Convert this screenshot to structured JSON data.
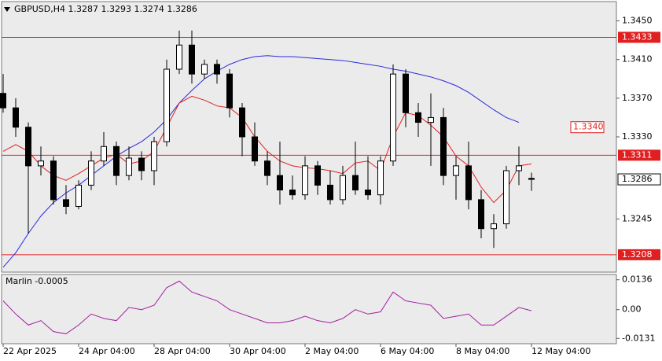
{
  "chart_data": [
    {
      "type": "candlestick",
      "title": "GBPUSD,H4  1.3287 1.3293 1.3274 1.3286",
      "categories": [
        "22 Apr 2025",
        null,
        null,
        null,
        null,
        null,
        "24 Apr 04:00",
        null,
        null,
        null,
        null,
        null,
        "28 Apr 04:00",
        null,
        null,
        null,
        null,
        null,
        "30 Apr 04:00",
        null,
        null,
        null,
        null,
        null,
        "2 May 04:00",
        null,
        null,
        null,
        null,
        null,
        "6 May 04:00",
        null,
        null,
        null,
        null,
        null,
        "8 May 04:00",
        null,
        null,
        null,
        null,
        null,
        "12 May 04:00"
      ],
      "open": [
        1.3375,
        1.336,
        1.334,
        1.33,
        1.3305,
        1.3265,
        1.3258,
        1.328,
        1.3305,
        1.332,
        1.329,
        1.3308,
        1.3295,
        1.3325,
        1.34,
        1.3425,
        1.3395,
        1.3405,
        1.3395,
        1.336,
        1.333,
        1.3305,
        1.329,
        1.3275,
        1.327,
        1.33,
        1.328,
        1.3265,
        1.329,
        1.3275,
        1.327,
        1.3305,
        1.3395,
        1.3355,
        1.3345,
        1.335,
        1.329,
        1.33,
        1.3265,
        1.3235,
        1.324,
        1.3295,
        1.3287
      ],
      "high": [
        1.3395,
        1.337,
        1.3345,
        1.332,
        1.331,
        1.328,
        1.3285,
        1.3315,
        1.3335,
        1.3325,
        1.332,
        1.3315,
        1.333,
        1.341,
        1.344,
        1.344,
        1.341,
        1.341,
        1.34,
        1.3365,
        1.3345,
        1.3315,
        1.3325,
        1.329,
        1.331,
        1.3305,
        1.3295,
        1.33,
        1.3325,
        1.331,
        1.331,
        1.3405,
        1.34,
        1.3365,
        1.3375,
        1.336,
        1.331,
        1.3325,
        1.3275,
        1.325,
        1.33,
        1.332,
        1.3293
      ],
      "low": [
        1.3355,
        1.333,
        1.323,
        1.329,
        1.326,
        1.325,
        1.3255,
        1.3275,
        1.33,
        1.328,
        1.3285,
        1.3285,
        1.328,
        1.332,
        1.3395,
        1.3385,
        1.339,
        1.3385,
        1.335,
        1.331,
        1.33,
        1.328,
        1.326,
        1.3265,
        1.3265,
        1.327,
        1.326,
        1.326,
        1.327,
        1.3265,
        1.326,
        1.33,
        1.334,
        1.333,
        1.33,
        1.328,
        1.3265,
        1.3255,
        1.3225,
        1.3215,
        1.3235,
        1.328,
        1.3274
      ],
      "close": [
        1.336,
        1.334,
        1.33,
        1.3305,
        1.3265,
        1.3258,
        1.328,
        1.3305,
        1.332,
        1.329,
        1.3308,
        1.3295,
        1.3325,
        1.34,
        1.3425,
        1.3395,
        1.3405,
        1.3395,
        1.336,
        1.333,
        1.3305,
        1.329,
        1.3275,
        1.327,
        1.33,
        1.328,
        1.3265,
        1.329,
        1.3275,
        1.327,
        1.3305,
        1.3395,
        1.3355,
        1.3345,
        1.335,
        1.329,
        1.33,
        1.3265,
        1.3235,
        1.324,
        1.3295,
        1.33,
        1.3286
      ],
      "up_color": "#ffffff",
      "down_color": "#000000",
      "lines": [
        {
          "color": "#2a2ae0",
          "values": [
            1.3195,
            1.321,
            1.323,
            1.3248,
            1.3262,
            1.3272,
            1.328,
            1.329,
            1.33,
            1.331,
            1.3318,
            1.3325,
            1.3335,
            1.3348,
            1.3365,
            1.3378,
            1.339,
            1.3398,
            1.3405,
            1.341,
            1.3413,
            1.3414,
            1.3413,
            1.3413,
            1.3412,
            1.3411,
            1.341,
            1.3409,
            1.3407,
            1.3405,
            1.3403,
            1.34,
            1.3398,
            1.3395,
            1.3392,
            1.3388,
            1.3383,
            1.3376,
            1.3367,
            1.3358,
            1.335,
            1.3345,
            null
          ]
        },
        {
          "color": "#e02020",
          "values": [
            1.3315,
            1.3322,
            1.3315,
            1.33,
            1.329,
            1.3285,
            1.3292,
            1.33,
            1.3308,
            1.3312,
            1.3302,
            1.3305,
            1.3315,
            1.334,
            1.3365,
            1.3372,
            1.3368,
            1.3362,
            1.336,
            1.335,
            1.333,
            1.3315,
            1.3305,
            1.33,
            1.3298,
            1.3297,
            1.3295,
            1.3292,
            1.3303,
            1.3305,
            1.3295,
            1.333,
            1.3355,
            1.3352,
            1.3342,
            1.333,
            1.331,
            1.33,
            1.3278,
            1.3262,
            1.3275,
            1.33,
            1.3302
          ]
        }
      ],
      "hlines": [
        1.3433,
        1.3311,
        1.3208
      ],
      "hline_color": "#e02020",
      "current_price": 1.3286,
      "ma_label": {
        "value": 1.334,
        "label": "1.3340"
      },
      "ylim": [
        1.319,
        1.347
      ],
      "yticks": [
        {
          "value": 1.345,
          "label": "1.3450"
        },
        {
          "value": 1.341,
          "label": "1.3410"
        },
        {
          "value": 1.337,
          "label": "1.3370"
        },
        {
          "value": 1.333,
          "label": "1.3330"
        },
        {
          "value": 1.3245,
          "label": "1.3245"
        }
      ]
    },
    {
      "type": "line",
      "title": "Marlin -0.0005",
      "color": "#a020a0",
      "values": [
        0.004,
        -0.002,
        -0.007,
        -0.005,
        -0.01,
        -0.011,
        -0.007,
        -0.002,
        -0.004,
        -0.005,
        0.001,
        0.0,
        0.002,
        0.01,
        0.013,
        0.008,
        0.006,
        0.004,
        0.0,
        -0.002,
        -0.004,
        -0.006,
        -0.006,
        -0.005,
        -0.003,
        -0.005,
        -0.006,
        -0.004,
        0.0,
        -0.002,
        -0.001,
        0.008,
        0.004,
        0.003,
        0.002,
        -0.004,
        -0.003,
        -0.002,
        -0.007,
        -0.007,
        -0.003,
        0.001,
        -0.0005
      ],
      "ylim": [
        -0.0155,
        0.016
      ],
      "yticks": [
        0.0136,
        {
          "value": 0,
          "label": "0.00"
        },
        -0.0131
      ]
    }
  ]
}
